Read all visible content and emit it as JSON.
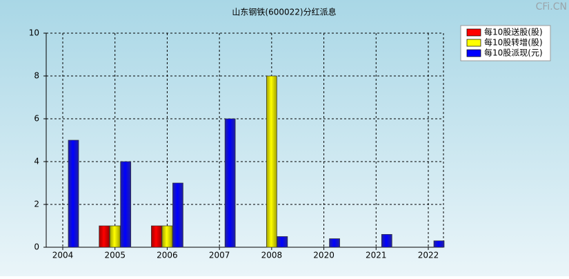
{
  "watermark": "CFi.CN",
  "chart_data": {
    "type": "bar",
    "title": "山东钢铁(600022)分红派息",
    "categories": [
      "2004",
      "2005",
      "2006",
      "2007",
      "2008",
      "2020",
      "2021",
      "2022"
    ],
    "series": [
      {
        "name": "每10股送股(股)",
        "color": "#ff0000",
        "values": [
          0,
          1,
          1,
          0,
          0,
          0,
          0,
          0
        ]
      },
      {
        "name": "每10股转增(股)",
        "color": "#ffff00",
        "values": [
          0,
          1,
          1,
          0,
          8,
          0,
          0,
          0
        ]
      },
      {
        "name": "每10股派现(元)",
        "color": "#0000ff",
        "values": [
          5,
          4,
          3,
          6,
          0.5,
          0.4,
          0.6,
          0.3
        ]
      }
    ],
    "ylim": [
      0,
      10
    ],
    "yticks": [
      0,
      2,
      4,
      6,
      8,
      10
    ],
    "grid": true,
    "legend": "top-right"
  }
}
